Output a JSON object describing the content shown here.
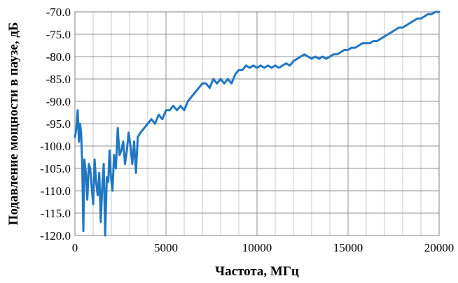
{
  "chart_data": {
    "type": "line",
    "xlabel": "Частота, МГц",
    "ylabel": "Подавление мощности в паузе, дБ",
    "xlim": [
      0,
      20000
    ],
    "ylim": [
      -120,
      -70
    ],
    "x_ticks": [
      0,
      5000,
      10000,
      15000,
      20000
    ],
    "x_tick_labels": [
      "0",
      "5000",
      "10000",
      "15000",
      "20000"
    ],
    "y_ticks": [
      -70,
      -75,
      -80,
      -85,
      -90,
      -95,
      -100,
      -105,
      -110,
      -115,
      -120
    ],
    "y_tick_labels": [
      "-70.0",
      "-75.0",
      "-80.0",
      "-85.0",
      "-90.0",
      "-95.0",
      "-100.0",
      "-105.0",
      "-110.0",
      "-115.0",
      "-120.0"
    ],
    "x_minor_step": 1000,
    "grid": true,
    "series_color": "#1f77c4",
    "series": [
      {
        "x": [
          0,
          80,
          150,
          220,
          280,
          340,
          400,
          460,
          520,
          600,
          680,
          760,
          840,
          920,
          1000,
          1080,
          1160,
          1250,
          1340,
          1420,
          1500,
          1580,
          1660,
          1750,
          1830,
          1900,
          1980,
          2060,
          2150,
          2250,
          2350,
          2450,
          2550,
          2650,
          2750,
          2850,
          2950,
          3050,
          3150,
          3250,
          3350,
          3450,
          3600,
          3800,
          4000,
          4200,
          4400,
          4600,
          4800,
          5000,
          5200,
          5400,
          5600,
          5800,
          6000,
          6200,
          6400,
          6600,
          6800,
          7000,
          7200,
          7400,
          7600,
          7800,
          8000,
          8200,
          8400,
          8600,
          8800,
          9000,
          9200,
          9400,
          9600,
          9800,
          10000,
          10200,
          10400,
          10600,
          10800,
          11000,
          11200,
          11400,
          11600,
          11800,
          12000,
          12200,
          12400,
          12600,
          12800,
          13000,
          13200,
          13400,
          13600,
          13800,
          14000,
          14200,
          14400,
          14600,
          14800,
          15000,
          15200,
          15400,
          15600,
          15800,
          16000,
          16200,
          16400,
          16600,
          16800,
          17000,
          17200,
          17400,
          17600,
          17800,
          18000,
          18200,
          18400,
          18600,
          18800,
          19000,
          19200,
          19400,
          19600,
          19800,
          20000
        ],
        "y": [
          -98,
          -96,
          -92,
          -99,
          -95,
          -97,
          -104,
          -119,
          -103,
          -106,
          -112,
          -104,
          -105,
          -109,
          -113,
          -103,
          -108,
          -111,
          -106,
          -117,
          -109,
          -104,
          -120,
          -107,
          -108,
          -101,
          -107,
          -110,
          -102,
          -105,
          -96,
          -102,
          -101,
          -99,
          -104,
          -101,
          -97,
          -100,
          -104,
          -99,
          -106,
          -98,
          -97,
          -96,
          -95,
          -94,
          -95,
          -93,
          -94,
          -92,
          -92,
          -91,
          -92,
          -91,
          -92,
          -90,
          -89,
          -88,
          -87,
          -86,
          -86,
          -87,
          -85,
          -86,
          -85,
          -86,
          -85,
          -86,
          -84,
          -83,
          -83,
          -82,
          -82.5,
          -82,
          -82.5,
          -82,
          -82.5,
          -82,
          -82.5,
          -82,
          -82.5,
          -82,
          -81.5,
          -82,
          -81,
          -80.5,
          -80,
          -79.5,
          -80,
          -80.5,
          -80,
          -80.5,
          -80,
          -80.5,
          -80,
          -79.5,
          -79.5,
          -79,
          -78.5,
          -78.5,
          -78,
          -78,
          -77.5,
          -77,
          -77,
          -77,
          -76.5,
          -76.5,
          -76,
          -75.5,
          -75,
          -74.5,
          -74,
          -73.5,
          -73.5,
          -73,
          -72.5,
          -72,
          -71.5,
          -71.5,
          -71,
          -70.5,
          -70.5,
          -70,
          -70
        ]
      }
    ]
  }
}
